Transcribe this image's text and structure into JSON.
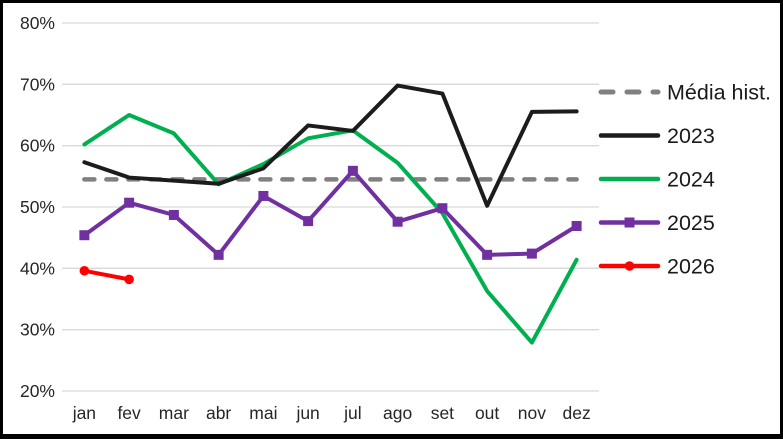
{
  "figure": {
    "background": "#ffffff",
    "border_color": "#000000",
    "gridline_color": "#d9d9d9",
    "tick_text_color": "#262626",
    "legend_text_color": "#1a1a1a"
  },
  "chart_data": {
    "type": "line",
    "title": "",
    "xlabel": "",
    "ylabel": "",
    "categories": [
      "jan",
      "fev",
      "mar",
      "abr",
      "mai",
      "jun",
      "jul",
      "ago",
      "set",
      "out",
      "nov",
      "dez"
    ],
    "ylim": [
      20,
      80
    ],
    "y_ticks": [
      {
        "value": 20,
        "label": "20%"
      },
      {
        "value": 30,
        "label": "30%"
      },
      {
        "value": 40,
        "label": "40%"
      },
      {
        "value": 50,
        "label": "50%"
      },
      {
        "value": 60,
        "label": "60%"
      },
      {
        "value": 70,
        "label": "70%"
      },
      {
        "value": 80,
        "label": "80%"
      }
    ],
    "grid": true,
    "legend_position": "right",
    "series": [
      {
        "name": "Média hist.",
        "color": "#808080",
        "style": "dashed",
        "marker": "none",
        "values": [
          54.5,
          54.5,
          54.5,
          54.5,
          54.5,
          54.5,
          54.5,
          54.5,
          54.5,
          54.5,
          54.5,
          54.5
        ]
      },
      {
        "name": "2023",
        "color": "#1c1c1c",
        "style": "solid",
        "marker": "none",
        "values": [
          57.3,
          54.8,
          54.3,
          53.8,
          56.3,
          63.3,
          62.4,
          69.8,
          68.5,
          50.2,
          65.5,
          65.6
        ]
      },
      {
        "name": "2024",
        "color": "#00b050",
        "style": "solid",
        "marker": "none",
        "values": [
          60.2,
          65.0,
          62.0,
          53.7,
          57.0,
          61.2,
          62.5,
          57.2,
          49.0,
          36.3,
          27.9,
          41.4
        ]
      },
      {
        "name": "2025",
        "color": "#7030a0",
        "style": "solid",
        "marker": "square",
        "values": [
          45.4,
          50.7,
          48.7,
          42.2,
          51.8,
          47.7,
          55.9,
          47.6,
          49.8,
          42.2,
          42.4,
          46.9
        ]
      },
      {
        "name": "2026",
        "color": "#ff0000",
        "style": "solid",
        "marker": "circle",
        "values": [
          39.6,
          38.2
        ]
      }
    ],
    "draw_order": [
      0,
      2,
      1,
      3,
      4
    ]
  }
}
